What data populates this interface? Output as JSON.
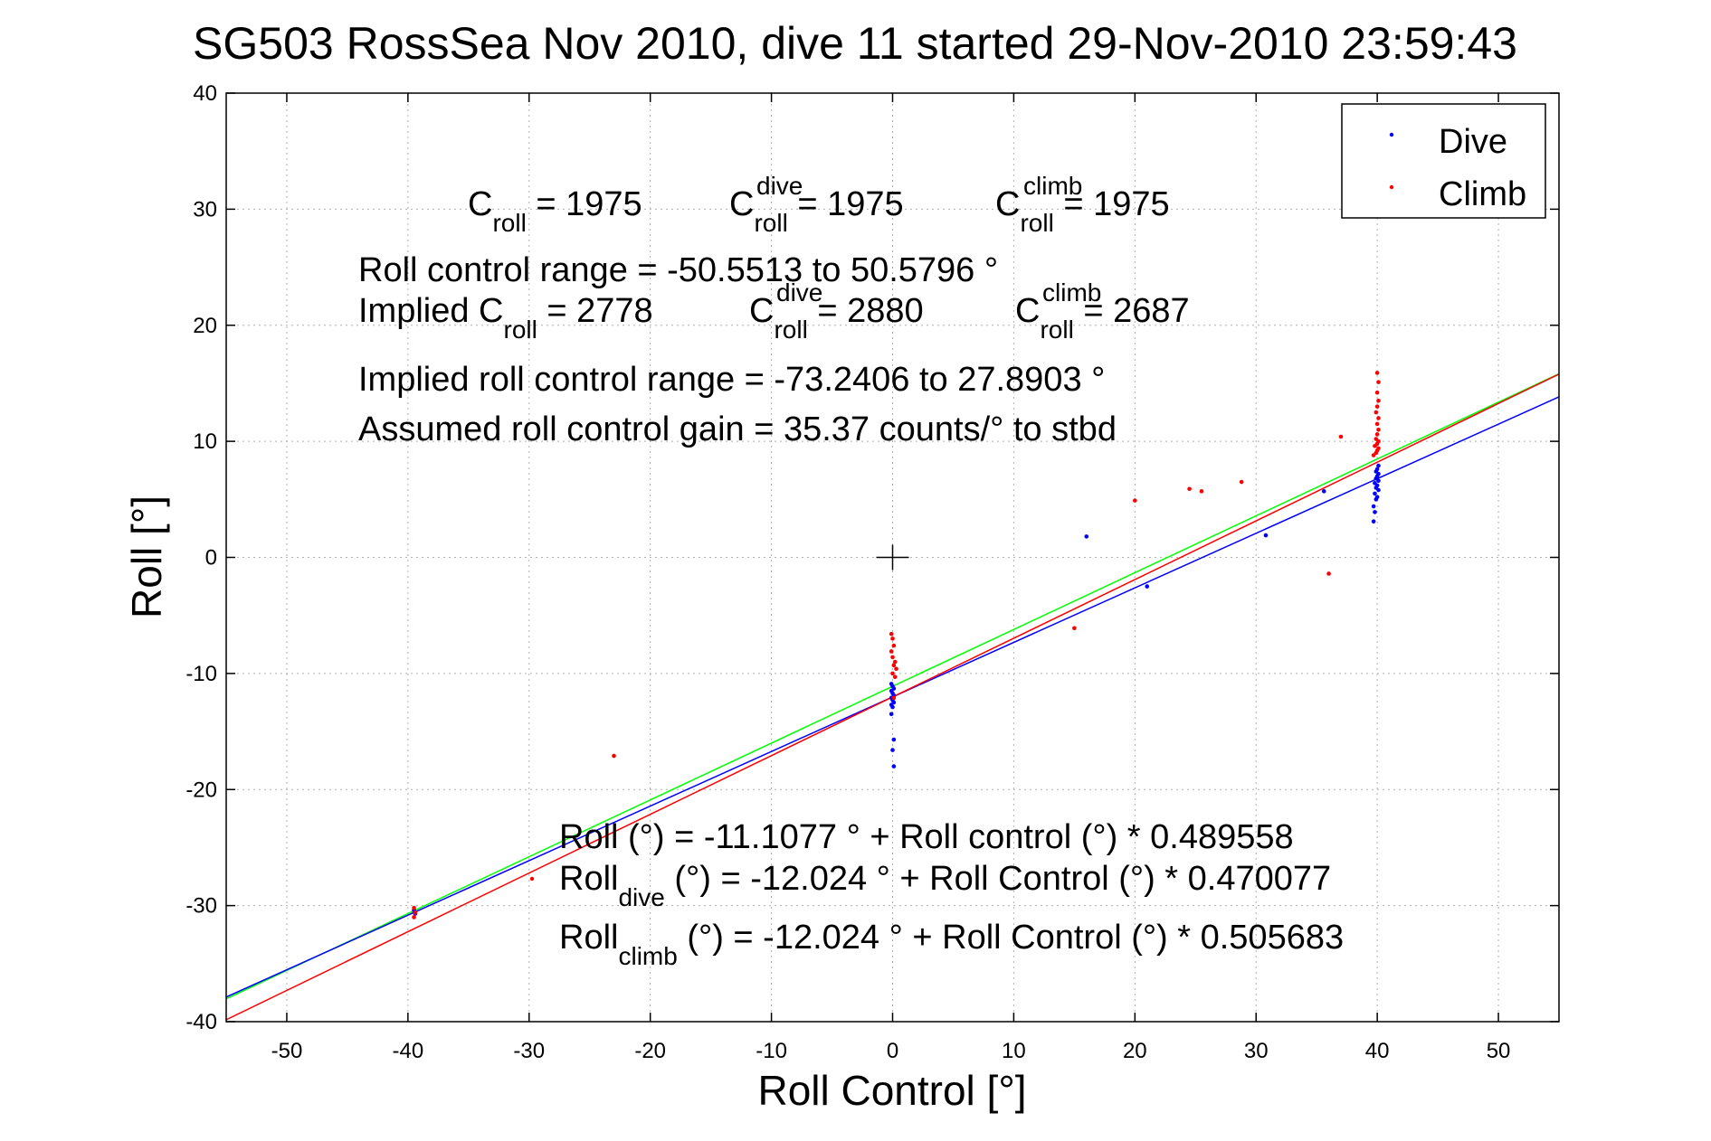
{
  "chart_data": {
    "type": "scatter",
    "title": "SG503 RossSea Nov 2010, dive 11 started 29-Nov-2010 23:59:43",
    "xlabel": "Roll Control [°]",
    "ylabel": "Roll [°]",
    "xlim": [
      -55,
      55
    ],
    "ylim": [
      -40,
      40
    ],
    "xticks": [
      -50,
      -40,
      -30,
      -20,
      -10,
      0,
      10,
      20,
      30,
      40,
      50
    ],
    "yticks": [
      -40,
      -30,
      -20,
      -10,
      0,
      10,
      20,
      30,
      40
    ],
    "grid": true,
    "legend_position": "top-right",
    "series": [
      {
        "name": "Dive",
        "color": "#0000ff",
        "points": [
          [
            -39.5,
            -30.4
          ],
          [
            -39.4,
            -30.7
          ],
          [
            -0.1,
            -10.9
          ],
          [
            0.0,
            -11.1
          ],
          [
            0.1,
            -11.3
          ],
          [
            -0.1,
            -11.5
          ],
          [
            0.0,
            -11.7
          ],
          [
            0.1,
            -11.9
          ],
          [
            -0.1,
            -12.1
          ],
          [
            0.0,
            -12.3
          ],
          [
            0.1,
            -12.5
          ],
          [
            -0.1,
            -12.7
          ],
          [
            0.0,
            -12.9
          ],
          [
            -0.1,
            -13.5
          ],
          [
            0.1,
            -15.7
          ],
          [
            0.0,
            -16.6
          ],
          [
            0.1,
            -18.0
          ],
          [
            16.0,
            1.8
          ],
          [
            21.0,
            -2.5
          ],
          [
            30.8,
            1.9
          ],
          [
            35.6,
            5.7
          ],
          [
            39.7,
            3.1
          ],
          [
            39.8,
            3.9
          ],
          [
            39.7,
            4.4
          ],
          [
            39.9,
            5.0
          ],
          [
            40.0,
            5.2
          ],
          [
            39.8,
            5.5
          ],
          [
            40.1,
            5.8
          ],
          [
            39.9,
            6.0
          ],
          [
            40.0,
            6.2
          ],
          [
            39.8,
            6.4
          ],
          [
            40.1,
            6.6
          ],
          [
            39.9,
            6.8
          ],
          [
            40.0,
            7.0
          ],
          [
            40.1,
            7.2
          ],
          [
            39.9,
            7.4
          ],
          [
            40.0,
            7.6
          ],
          [
            40.1,
            7.9
          ]
        ]
      },
      {
        "name": "Climb",
        "color": "#ff0000",
        "points": [
          [
            -39.5,
            -30.2
          ],
          [
            -39.4,
            -30.6
          ],
          [
            -39.5,
            -31.0
          ],
          [
            -23.0,
            -17.1
          ],
          [
            -0.1,
            -6.6
          ],
          [
            0.0,
            -7.0
          ],
          [
            0.1,
            -7.6
          ],
          [
            -0.1,
            -8.1
          ],
          [
            0.0,
            -8.6
          ],
          [
            0.2,
            -9.0
          ],
          [
            0.1,
            -9.3
          ],
          [
            0.3,
            -9.6
          ],
          [
            0.0,
            -10.0
          ],
          [
            0.2,
            -10.3
          ],
          [
            0.1,
            -12.1
          ],
          [
            15.0,
            -6.1
          ],
          [
            20.0,
            4.9
          ],
          [
            24.5,
            5.9
          ],
          [
            25.5,
            5.7
          ],
          [
            28.8,
            6.5
          ],
          [
            36.0,
            -1.4
          ],
          [
            37.0,
            10.4
          ],
          [
            39.7,
            8.8
          ],
          [
            39.9,
            9.0
          ],
          [
            40.0,
            9.2
          ],
          [
            40.1,
            9.4
          ],
          [
            39.8,
            9.6
          ],
          [
            40.0,
            9.8
          ],
          [
            40.1,
            10.0
          ],
          [
            39.9,
            10.2
          ],
          [
            40.0,
            10.6
          ],
          [
            40.1,
            11.0
          ],
          [
            40.0,
            11.5
          ],
          [
            40.1,
            12.0
          ],
          [
            39.9,
            12.5
          ],
          [
            40.0,
            13.0
          ],
          [
            40.1,
            13.5
          ],
          [
            40.0,
            14.2
          ],
          [
            40.1,
            15.1
          ],
          [
            40.0,
            15.9
          ]
        ]
      }
    ],
    "fit_lines": [
      {
        "color": "#00ff00",
        "intercept": -11.1077,
        "slope": 0.489558
      },
      {
        "color": "#0000ff",
        "intercept": -12.024,
        "slope": 0.470077
      },
      {
        "color": "#ff0000",
        "intercept": -12.024,
        "slope": 0.505683
      }
    ],
    "annotations": {
      "c_roll": {
        "label": "C",
        "sub": "roll",
        "value": " = 1975"
      },
      "c_roll_dive": {
        "label": "C",
        "sub": "roll",
        "sup": "dive",
        "value": " = 1975"
      },
      "c_roll_climb": {
        "label": "C",
        "sub": "roll",
        "sup": "climb",
        "value": " = 1975"
      },
      "roll_control_range": "Roll control range = -50.5513 to 50.5796 °",
      "implied_c_roll": {
        "label": "Implied C",
        "sub": "roll",
        "value": " = 2778"
      },
      "implied_c_roll_dive": {
        "label": "C",
        "sub": "roll",
        "sup": "dive",
        "value": " = 2880"
      },
      "implied_c_roll_climb": {
        "label": "C",
        "sub": "roll",
        "sup": "climb",
        "value": " = 2687"
      },
      "implied_range": "Implied roll control range = -73.2406 to 27.8903 °",
      "assumed_gain": "Assumed roll control gain = 35.37 counts/° to stbd",
      "fit_all": "Roll (°) = -11.1077 ° + Roll control (°) * 0.489558",
      "fit_dive": {
        "label": "Roll",
        "sub": "dive",
        "value": " (°) = -12.024 ° + Roll Control (°) * 0.470077"
      },
      "fit_climb": {
        "label": "Roll",
        "sub": "climb",
        "value": " (°) = -12.024 ° + Roll Control (°) * 0.505683"
      }
    }
  }
}
